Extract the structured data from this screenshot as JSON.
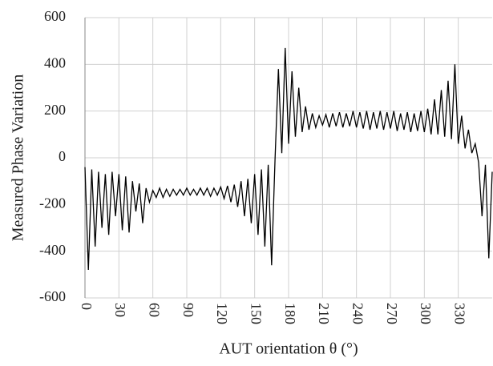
{
  "chart_data": {
    "type": "line",
    "x_label": "AUT orientation θ (°)",
    "y_label": "Measured Phase Variation",
    "x": [
      0,
      3,
      6,
      9,
      12,
      15,
      18,
      21,
      24,
      27,
      30,
      33,
      36,
      39,
      42,
      45,
      48,
      51,
      54,
      57,
      60,
      63,
      66,
      69,
      72,
      75,
      78,
      81,
      84,
      87,
      90,
      93,
      96,
      99,
      102,
      105,
      108,
      111,
      114,
      117,
      120,
      123,
      126,
      129,
      132,
      135,
      138,
      141,
      144,
      147,
      150,
      153,
      156,
      159,
      162,
      165,
      168,
      171,
      174,
      177,
      180,
      183,
      186,
      189,
      192,
      195,
      198,
      201,
      204,
      207,
      210,
      213,
      216,
      219,
      222,
      225,
      228,
      231,
      234,
      237,
      240,
      243,
      246,
      249,
      252,
      255,
      258,
      261,
      264,
      267,
      270,
      273,
      276,
      279,
      282,
      285,
      288,
      291,
      294,
      297,
      300,
      303,
      306,
      309,
      312,
      315,
      318,
      321,
      324,
      327,
      330,
      333,
      336,
      339,
      342,
      345,
      348,
      351,
      354,
      357,
      360
    ],
    "series": [
      {
        "color": "#000000",
        "values": [
          -40,
          -480,
          -50,
          -380,
          -60,
          -300,
          -70,
          -330,
          -60,
          -250,
          -70,
          -310,
          -80,
          -320,
          -100,
          -230,
          -110,
          -280,
          -130,
          -190,
          -140,
          -170,
          -130,
          -170,
          -135,
          -165,
          -135,
          -160,
          -135,
          -160,
          -130,
          -160,
          -135,
          -160,
          -130,
          -160,
          -130,
          -165,
          -130,
          -160,
          -125,
          -175,
          -120,
          -190,
          -115,
          -210,
          -100,
          -250,
          -90,
          -280,
          -70,
          -330,
          -50,
          -380,
          -30,
          -460,
          -10,
          380,
          20,
          470,
          60,
          370,
          90,
          300,
          110,
          220,
          120,
          190,
          130,
          180,
          140,
          185,
          130,
          190,
          135,
          195,
          130,
          190,
          135,
          200,
          130,
          195,
          125,
          200,
          120,
          195,
          125,
          200,
          120,
          195,
          125,
          200,
          115,
          190,
          120,
          195,
          110,
          190,
          115,
          200,
          110,
          210,
          100,
          250,
          100,
          290,
          90,
          330,
          80,
          400,
          60,
          180,
          40,
          120,
          20,
          60,
          -20,
          -250,
          -30,
          -430,
          -60
        ]
      }
    ],
    "xlim": [
      0,
      360
    ],
    "xticks": [
      0,
      30,
      60,
      90,
      120,
      150,
      180,
      210,
      240,
      270,
      300,
      330
    ],
    "ylim": [
      -600,
      600
    ],
    "yticks": [
      -600,
      -400,
      -200,
      0,
      200,
      400,
      600
    ],
    "grid": true
  }
}
